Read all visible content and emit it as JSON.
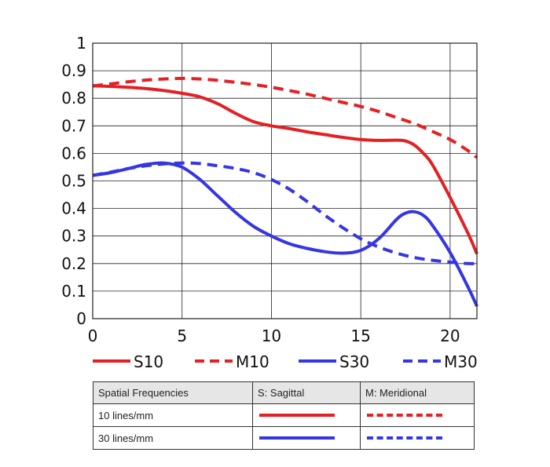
{
  "chart_data": {
    "type": "line",
    "xlim": [
      0,
      21.5
    ],
    "ylim": [
      0,
      1
    ],
    "x_ticks": [
      "0",
      "5",
      "10",
      "15",
      "20"
    ],
    "y_ticks": [
      "0",
      "0.1",
      "0.2",
      "0.3",
      "0.4",
      "0.5",
      "0.6",
      "0.7",
      "0.8",
      "0.9",
      "1"
    ],
    "grid": true,
    "legend_position": "bottom",
    "series": [
      {
        "name": "S10",
        "color": "#e32024",
        "dash": "solid",
        "x": [
          0,
          1,
          2,
          3,
          4,
          5,
          6,
          7,
          8,
          9,
          10,
          11,
          12,
          13,
          14,
          15,
          16,
          17,
          17.5,
          18,
          18.5,
          19,
          20,
          21,
          21.5
        ],
        "y": [
          0.845,
          0.843,
          0.84,
          0.835,
          0.828,
          0.818,
          0.805,
          0.78,
          0.745,
          0.715,
          0.7,
          0.69,
          0.678,
          0.668,
          0.658,
          0.65,
          0.647,
          0.648,
          0.645,
          0.63,
          0.6,
          0.56,
          0.44,
          0.31,
          0.235
        ]
      },
      {
        "name": "M10",
        "color": "#e32024",
        "dash": "dashed",
        "x": [
          0,
          1,
          2,
          3,
          4,
          5,
          6,
          7,
          8,
          9,
          10,
          11,
          12,
          13,
          14,
          15,
          16,
          17,
          18,
          19,
          20,
          21,
          21.5
        ],
        "y": [
          0.845,
          0.852,
          0.86,
          0.866,
          0.87,
          0.872,
          0.87,
          0.865,
          0.858,
          0.85,
          0.84,
          0.828,
          0.815,
          0.8,
          0.785,
          0.77,
          0.752,
          0.73,
          0.708,
          0.68,
          0.65,
          0.61,
          0.585
        ]
      },
      {
        "name": "S30",
        "color": "#3535e6",
        "dash": "solid",
        "x": [
          0,
          1,
          2,
          3,
          4,
          5,
          6,
          7,
          8,
          9,
          10,
          11,
          12,
          13,
          14,
          15,
          16,
          17,
          17.5,
          18,
          18.5,
          19,
          20,
          21,
          21.5
        ],
        "y": [
          0.52,
          0.53,
          0.545,
          0.56,
          0.565,
          0.55,
          0.505,
          0.445,
          0.385,
          0.335,
          0.3,
          0.272,
          0.255,
          0.243,
          0.238,
          0.248,
          0.29,
          0.36,
          0.383,
          0.388,
          0.375,
          0.34,
          0.24,
          0.115,
          0.045
        ]
      },
      {
        "name": "M30",
        "color": "#3535e6",
        "dash": "dashed",
        "x": [
          0,
          1,
          2,
          3,
          4,
          5,
          6,
          7,
          8,
          9,
          10,
          11,
          12,
          13,
          14,
          15,
          16,
          17,
          18,
          19,
          20,
          21,
          21.5
        ],
        "y": [
          0.52,
          0.532,
          0.545,
          0.555,
          0.562,
          0.565,
          0.563,
          0.555,
          0.545,
          0.53,
          0.505,
          0.47,
          0.425,
          0.375,
          0.33,
          0.29,
          0.26,
          0.238,
          0.222,
          0.212,
          0.205,
          0.2,
          0.2
        ]
      }
    ]
  },
  "key_table": {
    "header": [
      "Spatial Frequencies",
      "S: Sagittal",
      "M: Meridional"
    ],
    "rows": [
      {
        "label": "10 lines/mm",
        "color": "#e32024"
      },
      {
        "label": "30 lines/mm",
        "color": "#3535e6"
      }
    ]
  }
}
